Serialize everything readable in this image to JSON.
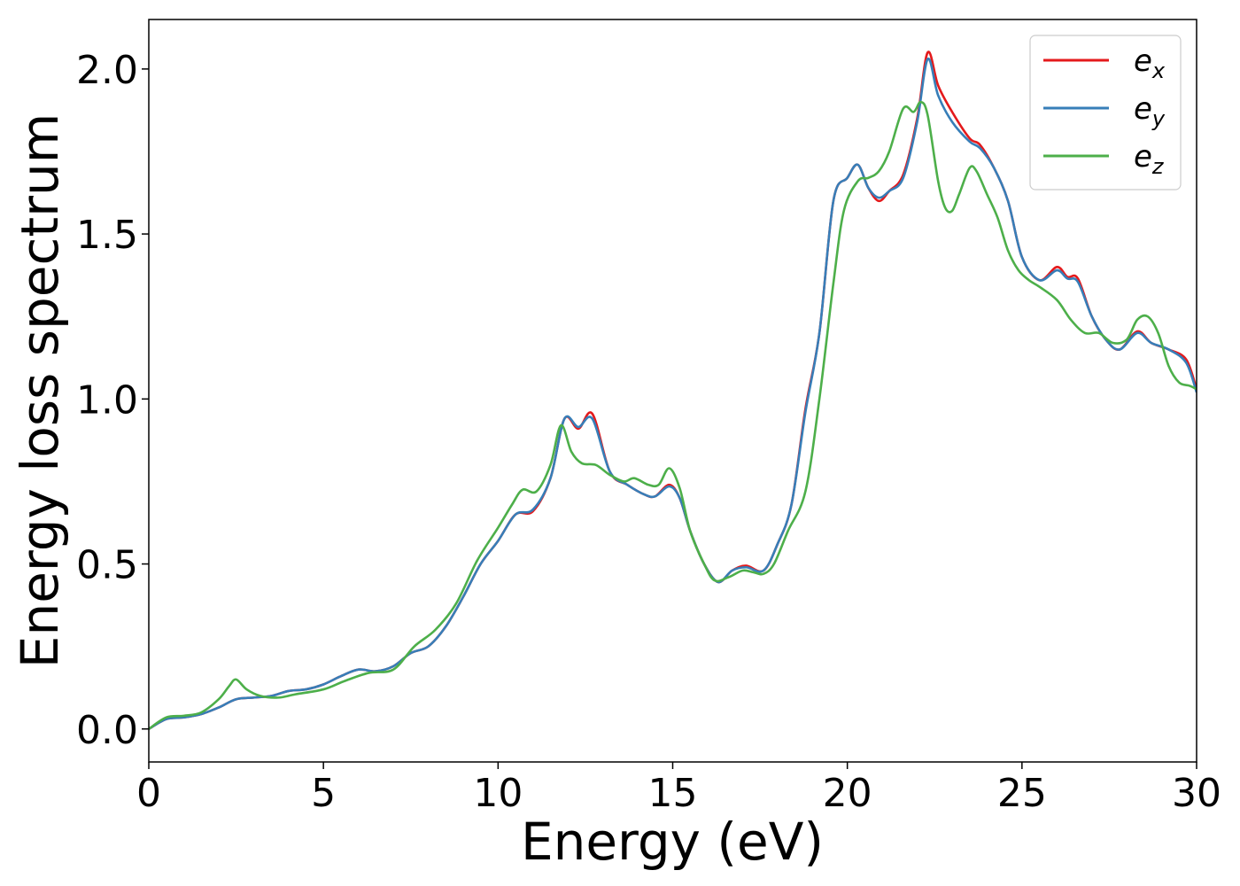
{
  "chart_data": {
    "type": "line",
    "title": "",
    "xlabel": "Energy (eV)",
    "ylabel": "Energy loss spectrum",
    "xlim": [
      0,
      30
    ],
    "ylim": [
      -0.1,
      2.15
    ],
    "xticks": [
      0,
      5,
      10,
      15,
      20,
      25,
      30
    ],
    "xtick_labels": [
      "0",
      "5",
      "10",
      "15",
      "20",
      "25",
      "30"
    ],
    "yticks": [
      0.0,
      0.5,
      1.0,
      1.5,
      2.0
    ],
    "ytick_labels": [
      "0.0",
      "0.5",
      "1.0",
      "1.5",
      "2.0"
    ],
    "grid": false,
    "legend_position": "top-right",
    "series": [
      {
        "name": "e",
        "subscript": "x",
        "color": "#e41a1c",
        "x": [
          0,
          0.5,
          1,
          1.5,
          2,
          2.5,
          3,
          3.5,
          4,
          4.5,
          5,
          5.5,
          6,
          6.5,
          7,
          7.5,
          8,
          8.5,
          9,
          9.5,
          10,
          10.5,
          11,
          11.5,
          11.9,
          12.3,
          12.7,
          13.2,
          13.7,
          14.2,
          14.5,
          14.9,
          15.2,
          15.5,
          15.9,
          16.3,
          16.7,
          17.1,
          17.6,
          18,
          18.4,
          18.8,
          19.2,
          19.6,
          20,
          20.3,
          20.6,
          20.9,
          21.2,
          21.6,
          22,
          22.3,
          22.6,
          23,
          23.5,
          23.8,
          24.2,
          24.6,
          25,
          25.5,
          26,
          26.3,
          26.6,
          27,
          27.4,
          27.8,
          28.3,
          28.7,
          29.2,
          29.7,
          30
        ],
        "values": [
          0.0,
          0.03,
          0.035,
          0.045,
          0.065,
          0.09,
          0.095,
          0.1,
          0.115,
          0.12,
          0.135,
          0.16,
          0.18,
          0.175,
          0.19,
          0.23,
          0.25,
          0.31,
          0.4,
          0.5,
          0.57,
          0.65,
          0.66,
          0.76,
          0.94,
          0.91,
          0.955,
          0.78,
          0.74,
          0.71,
          0.705,
          0.74,
          0.7,
          0.6,
          0.5,
          0.445,
          0.48,
          0.495,
          0.48,
          0.56,
          0.68,
          0.97,
          1.2,
          1.6,
          1.67,
          1.71,
          1.64,
          1.6,
          1.63,
          1.68,
          1.85,
          2.05,
          1.95,
          1.87,
          1.79,
          1.77,
          1.7,
          1.6,
          1.43,
          1.36,
          1.4,
          1.37,
          1.365,
          1.25,
          1.18,
          1.15,
          1.205,
          1.17,
          1.15,
          1.12,
          1.03
        ]
      },
      {
        "name": "e",
        "subscript": "y",
        "color": "#377eb8",
        "x": [
          0,
          0.5,
          1,
          1.5,
          2,
          2.5,
          3,
          3.5,
          4,
          4.5,
          5,
          5.5,
          6,
          6.5,
          7,
          7.5,
          8,
          8.5,
          9,
          9.5,
          10,
          10.5,
          11,
          11.5,
          11.9,
          12.3,
          12.7,
          13.2,
          13.7,
          14.2,
          14.5,
          14.9,
          15.2,
          15.5,
          15.9,
          16.3,
          16.7,
          17.1,
          17.6,
          18,
          18.4,
          18.8,
          19.2,
          19.6,
          20,
          20.3,
          20.6,
          20.9,
          21.2,
          21.6,
          22,
          22.3,
          22.6,
          23,
          23.5,
          23.8,
          24.2,
          24.6,
          25,
          25.5,
          26,
          26.3,
          26.6,
          27,
          27.4,
          27.8,
          28.3,
          28.7,
          29.2,
          29.7,
          30
        ],
        "values": [
          0.0,
          0.03,
          0.035,
          0.045,
          0.065,
          0.09,
          0.095,
          0.1,
          0.115,
          0.12,
          0.135,
          0.16,
          0.18,
          0.175,
          0.19,
          0.23,
          0.25,
          0.31,
          0.4,
          0.5,
          0.57,
          0.65,
          0.665,
          0.76,
          0.94,
          0.915,
          0.94,
          0.78,
          0.74,
          0.71,
          0.705,
          0.735,
          0.7,
          0.6,
          0.5,
          0.445,
          0.48,
          0.49,
          0.48,
          0.56,
          0.68,
          0.96,
          1.2,
          1.6,
          1.67,
          1.71,
          1.64,
          1.61,
          1.63,
          1.67,
          1.84,
          2.03,
          1.92,
          1.84,
          1.78,
          1.76,
          1.7,
          1.6,
          1.43,
          1.36,
          1.39,
          1.365,
          1.355,
          1.25,
          1.18,
          1.15,
          1.2,
          1.17,
          1.15,
          1.11,
          1.02
        ]
      },
      {
        "name": "e",
        "subscript": "z",
        "color": "#4daf4a",
        "x": [
          0,
          0.5,
          1,
          1.5,
          2,
          2.3,
          2.5,
          2.8,
          3.2,
          3.7,
          4.2,
          5,
          5.6,
          6.3,
          7,
          7.6,
          8.2,
          8.8,
          9.4,
          10,
          10.4,
          10.7,
          11.1,
          11.5,
          11.8,
          12.1,
          12.4,
          12.8,
          13.2,
          13.6,
          13.9,
          14.3,
          14.6,
          14.9,
          15.2,
          15.5,
          15.9,
          16.2,
          16.6,
          17,
          17.3,
          17.6,
          17.9,
          18.3,
          18.8,
          19.2,
          19.6,
          19.9,
          20.3,
          20.6,
          20.9,
          21.2,
          21.6,
          21.9,
          22.1,
          22.3,
          22.6,
          22.8,
          23,
          23.2,
          23.5,
          23.7,
          24,
          24.3,
          24.6,
          24.9,
          25.2,
          25.5,
          26,
          26.4,
          26.8,
          27.2,
          27.6,
          28,
          28.3,
          28.6,
          28.9,
          29.2,
          29.5,
          29.8,
          30
        ],
        "values": [
          0.0,
          0.035,
          0.04,
          0.05,
          0.09,
          0.13,
          0.15,
          0.12,
          0.1,
          0.095,
          0.105,
          0.12,
          0.145,
          0.17,
          0.18,
          0.25,
          0.3,
          0.38,
          0.51,
          0.61,
          0.68,
          0.725,
          0.72,
          0.8,
          0.92,
          0.84,
          0.805,
          0.8,
          0.77,
          0.75,
          0.76,
          0.74,
          0.74,
          0.79,
          0.73,
          0.6,
          0.5,
          0.45,
          0.46,
          0.48,
          0.475,
          0.47,
          0.5,
          0.6,
          0.72,
          1.0,
          1.35,
          1.57,
          1.66,
          1.67,
          1.69,
          1.75,
          1.88,
          1.87,
          1.9,
          1.86,
          1.66,
          1.58,
          1.57,
          1.62,
          1.7,
          1.69,
          1.62,
          1.55,
          1.45,
          1.39,
          1.36,
          1.34,
          1.3,
          1.24,
          1.2,
          1.2,
          1.17,
          1.18,
          1.24,
          1.25,
          1.2,
          1.1,
          1.05,
          1.04,
          1.03
        ]
      }
    ]
  }
}
